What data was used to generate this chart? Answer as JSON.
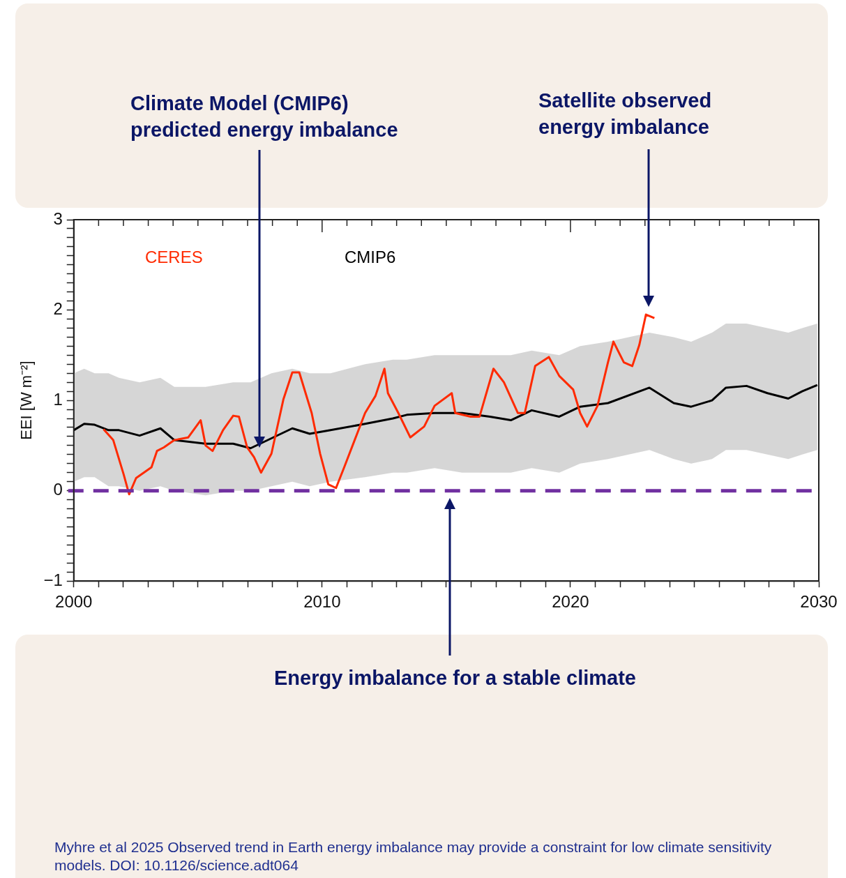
{
  "chart_data": {
    "type": "line",
    "ylabel": "EEI [W m⁻²]",
    "marker": "none",
    "xlim": [
      2000,
      2030
    ],
    "ylim": [
      -1,
      3
    ],
    "xticks": [
      2000,
      {
        "value": 2001,
        "label": null
      },
      {
        "value": 2002,
        "label": null
      },
      {
        "value": 2003,
        "label": null
      },
      {
        "value": 2004,
        "label": null
      },
      {
        "value": 2005,
        "label": null
      },
      {
        "value": 2006,
        "label": null
      },
      {
        "value": 2007,
        "label": null
      },
      {
        "value": 2008,
        "label": null
      },
      {
        "value": 2009,
        "label": null
      },
      2010,
      {
        "value": 2011,
        "label": null
      },
      {
        "value": 2012,
        "label": null
      },
      {
        "value": 2013,
        "label": null
      },
      {
        "value": 2014,
        "label": null
      },
      {
        "value": 2015,
        "label": null
      },
      {
        "value": 2016,
        "label": null
      },
      {
        "value": 2017,
        "label": null
      },
      {
        "value": 2018,
        "label": null
      },
      {
        "value": 2019,
        "label": null
      },
      2020,
      {
        "value": 2021,
        "label": null
      },
      {
        "value": 2022,
        "label": null
      },
      {
        "value": 2023,
        "label": null
      },
      {
        "value": 2024,
        "label": null
      },
      {
        "value": 2025,
        "label": null
      },
      {
        "value": 2026,
        "label": null
      },
      {
        "value": 2027,
        "label": null
      },
      {
        "value": 2028,
        "label": null
      },
      {
        "value": 2029,
        "label": null
      },
      2030
    ],
    "yticks": [
      {
        "value": -1,
        "label": "−1"
      },
      {
        "value": -0.9,
        "label": null
      },
      {
        "value": -0.8,
        "label": null
      },
      {
        "value": -0.7,
        "label": null
      },
      {
        "value": -0.6,
        "label": null
      },
      {
        "value": -0.5,
        "label": null
      },
      {
        "value": -0.4,
        "label": null
      },
      {
        "value": -0.3,
        "label": null
      },
      {
        "value": -0.2,
        "label": null
      },
      {
        "value": -0.1,
        "label": null
      },
      0,
      {
        "value": 0.1,
        "label": null
      },
      {
        "value": 0.2,
        "label": null
      },
      {
        "value": 0.3,
        "label": null
      },
      {
        "value": 0.4,
        "label": null
      },
      {
        "value": 0.5,
        "label": null
      },
      {
        "value": 0.6,
        "label": null
      },
      {
        "value": 0.7,
        "label": null
      },
      {
        "value": 0.8,
        "label": null
      },
      {
        "value": 0.9,
        "label": null
      },
      1,
      {
        "value": 1.1,
        "label": null
      },
      {
        "value": 1.2,
        "label": null
      },
      {
        "value": 1.3,
        "label": null
      },
      {
        "value": 1.4,
        "label": null
      },
      {
        "value": 1.5,
        "label": null
      },
      {
        "value": 1.6,
        "label": null
      },
      {
        "value": 1.7,
        "label": null
      },
      {
        "value": 1.8,
        "label": null
      },
      {
        "value": 1.9,
        "label": null
      },
      2,
      {
        "value": 2.1,
        "label": null
      },
      {
        "value": 2.2,
        "label": null
      },
      {
        "value": 2.3,
        "label": null
      },
      {
        "value": 2.4,
        "label": null
      },
      {
        "value": 2.5,
        "label": null
      },
      {
        "value": 2.6,
        "label": null
      },
      {
        "value": 2.7,
        "label": null
      },
      {
        "value": 2.8,
        "label": null
      },
      {
        "value": 2.9,
        "label": null
      },
      3
    ],
    "series": [
      {
        "name": "CMIP6",
        "color": "#000000",
        "x": [
          2000,
          2000.42,
          2000.84,
          2001.4,
          2001.82,
          2002.65,
          2003.49,
          2004.05,
          2005.31,
          2006.42,
          2007.12,
          2007.96,
          2008.8,
          2009.5,
          2010.34,
          2011.73,
          2012.85,
          2013.41,
          2014.53,
          2015.64,
          2016.76,
          2017.6,
          2018.44,
          2019.55,
          2020.39,
          2021.51,
          2023.18,
          2024.16,
          2024.86,
          2025.7,
          2026.26,
          2027.09,
          2027.93,
          2028.77,
          2029.33,
          2029.94
        ],
        "values": [
          0.67,
          0.74,
          0.73,
          0.67,
          0.67,
          0.61,
          0.69,
          0.56,
          0.52,
          0.52,
          0.47,
          0.58,
          0.69,
          0.63,
          0.67,
          0.74,
          0.8,
          0.84,
          0.86,
          0.86,
          0.82,
          0.78,
          0.89,
          0.82,
          0.93,
          0.97,
          1.14,
          0.97,
          0.93,
          1.0,
          1.14,
          1.16,
          1.08,
          1.02,
          1.1,
          1.17
        ],
        "upper": [
          1.3,
          1.35,
          1.3,
          1.3,
          1.25,
          1.2,
          1.25,
          1.15,
          1.15,
          1.2,
          1.2,
          1.3,
          1.35,
          1.3,
          1.3,
          1.4,
          1.45,
          1.45,
          1.5,
          1.5,
          1.5,
          1.5,
          1.55,
          1.5,
          1.6,
          1.65,
          1.75,
          1.7,
          1.65,
          1.75,
          1.85,
          1.85,
          1.8,
          1.75,
          1.8,
          1.85
        ],
        "lower": [
          0.1,
          0.15,
          0.15,
          0.05,
          0.05,
          0.0,
          0.05,
          0.0,
          -0.05,
          0.0,
          0.0,
          0.05,
          0.1,
          0.05,
          0.1,
          0.15,
          0.2,
          0.2,
          0.25,
          0.2,
          0.2,
          0.2,
          0.25,
          0.2,
          0.3,
          0.35,
          0.45,
          0.35,
          0.3,
          0.35,
          0.45,
          0.45,
          0.4,
          0.35,
          0.4,
          0.45
        ]
      },
      {
        "name": "CERES",
        "color": "#ff2a00",
        "x": [
          2001.2,
          2001.59,
          2002.01,
          2002.23,
          2002.51,
          2003.13,
          2003.35,
          2003.63,
          2004.05,
          2004.61,
          2005.11,
          2005.31,
          2005.59,
          2006.01,
          2006.42,
          2006.65,
          2006.98,
          2007.26,
          2007.54,
          2007.96,
          2008.44,
          2008.8,
          2009.08,
          2009.58,
          2009.92,
          2010.25,
          2010.56,
          2010.89,
          2011.31,
          2011.73,
          2012.15,
          2012.51,
          2012.65,
          2013.07,
          2013.55,
          2014.11,
          2014.53,
          2015.22,
          2015.36,
          2015.98,
          2016.34,
          2016.9,
          2017.32,
          2017.88,
          2018.16,
          2018.58,
          2019.13,
          2019.55,
          2020.11,
          2020.39,
          2020.67,
          2021.09,
          2021.51,
          2021.73,
          2022.15,
          2022.49,
          2022.77,
          2023.04,
          2023.38
        ],
        "values": [
          0.68,
          0.56,
          0.18,
          -0.04,
          0.14,
          0.26,
          0.44,
          0.48,
          0.56,
          0.59,
          0.78,
          0.5,
          0.44,
          0.67,
          0.83,
          0.82,
          0.48,
          0.37,
          0.2,
          0.41,
          1.01,
          1.31,
          1.31,
          0.86,
          0.41,
          0.07,
          0.03,
          0.26,
          0.56,
          0.86,
          1.05,
          1.35,
          1.08,
          0.86,
          0.59,
          0.71,
          0.94,
          1.08,
          0.86,
          0.82,
          0.82,
          1.35,
          1.2,
          0.86,
          0.86,
          1.38,
          1.48,
          1.27,
          1.12,
          0.86,
          0.71,
          0.94,
          1.42,
          1.65,
          1.42,
          1.38,
          1.61,
          1.95,
          1.91
        ]
      }
    ],
    "ref_lines": [
      {
        "axis": "y",
        "value": 0,
        "color": "#7030a0",
        "line_style": "dashed"
      }
    ],
    "annotations": [
      "Climate Model (CMIP6) predicted energy imbalance",
      "Satellite observed energy imbalance",
      "Energy imbalance for a stable climate",
      "Myhre et al 2025 Observed trend in Earth energy imbalance may provide a constraint for low climate sensitivity models. DOI: 10.1126/science.adt064"
    ]
  }
}
